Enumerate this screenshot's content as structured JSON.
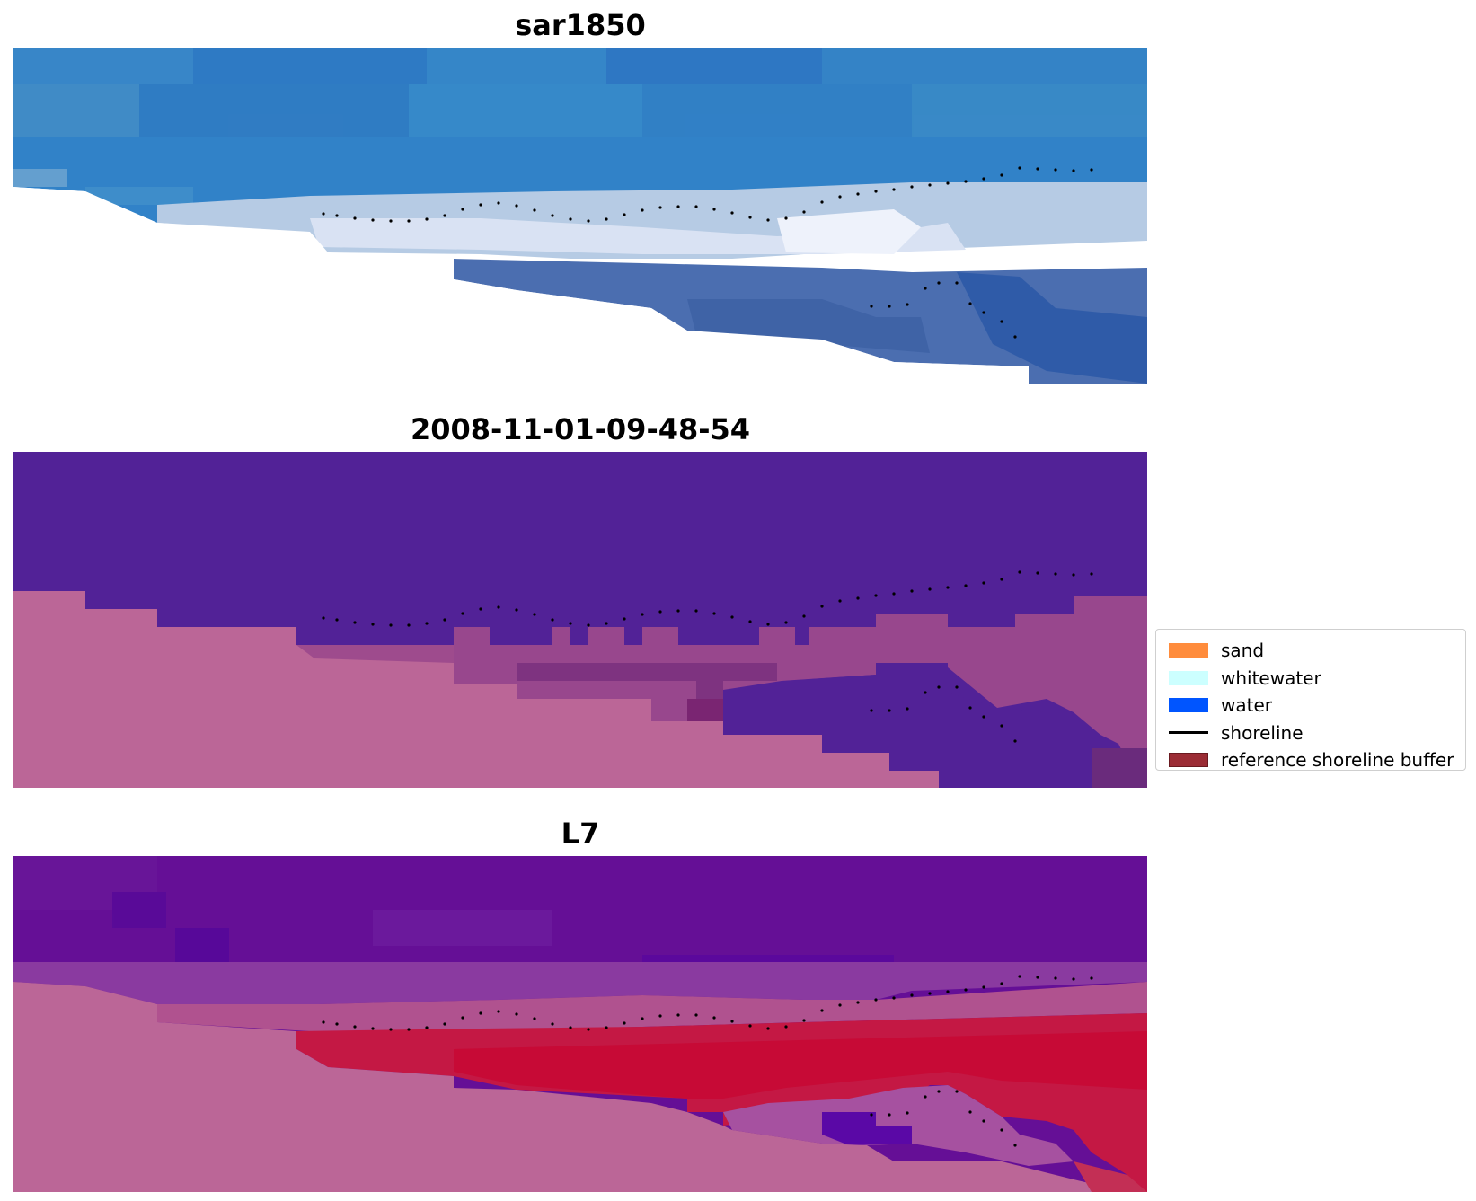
{
  "panels": [
    {
      "title": "sar1850",
      "image": "rgb composite (blue water, white surf, land masked white)"
    },
    {
      "title": "2008-11-01-09-48-54",
      "image": "classified image (purple water, pink land)"
    },
    {
      "title": "L7",
      "image": "classified overlay (purple water, red reference shoreline buffer, pink land)"
    }
  ],
  "legend": {
    "items": [
      {
        "label": "sand",
        "color": "#ff8c3c",
        "kind": "patch"
      },
      {
        "label": "whitewater",
        "color": "#ccffff",
        "kind": "patch"
      },
      {
        "label": "water",
        "color": "#0055ff",
        "kind": "patch"
      },
      {
        "label": "shoreline",
        "color": "#000000",
        "kind": "line"
      },
      {
        "label": "reference shoreline buffer",
        "color": "#9b2c35",
        "kind": "patch"
      }
    ]
  },
  "colors": {
    "water_blue": "#3484c8",
    "class_water_purple": "#522297",
    "class_land_pink": "#bb6697",
    "buffer_red": "#c0123a",
    "l7_purple": "#650f96"
  }
}
